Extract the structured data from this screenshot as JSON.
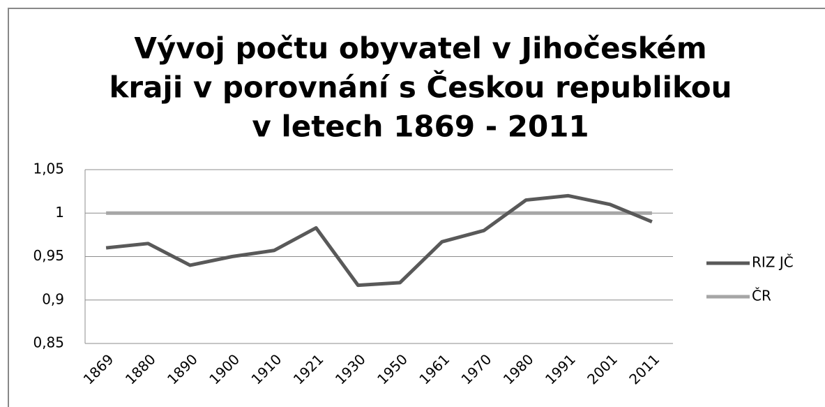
{
  "chart_data": {
    "type": "line",
    "title": [
      "Vývoj počtu obyvatel v Jihočeském",
      "kraji v porovnání s Českou republikou",
      "v letech 1869 - 2011"
    ],
    "categories": [
      "1869",
      "1880",
      "1890",
      "1900",
      "1910",
      "1921",
      "1930",
      "1950",
      "1961",
      "1970",
      "1980",
      "1991",
      "2001",
      "2011"
    ],
    "series": [
      {
        "name": "RIZ JČ",
        "color": "#595959",
        "values": [
          0.96,
          0.965,
          0.94,
          0.95,
          0.957,
          0.983,
          0.917,
          0.92,
          0.967,
          0.98,
          1.015,
          1.02,
          1.01,
          0.99
        ]
      },
      {
        "name": "ČR",
        "color": "#a6a6a6",
        "values": [
          1,
          1,
          1,
          1,
          1,
          1,
          1,
          1,
          1,
          1,
          1,
          1,
          1,
          1
        ]
      }
    ],
    "ylim": [
      0.85,
      1.05
    ],
    "yticks": [
      {
        "value": 0.85,
        "label": "0,85"
      },
      {
        "value": 0.9,
        "label": "0,9"
      },
      {
        "value": 0.95,
        "label": "0,95"
      },
      1,
      {
        "value": 1.05,
        "label": "1,05"
      }
    ],
    "grid": true,
    "legend": "right"
  }
}
